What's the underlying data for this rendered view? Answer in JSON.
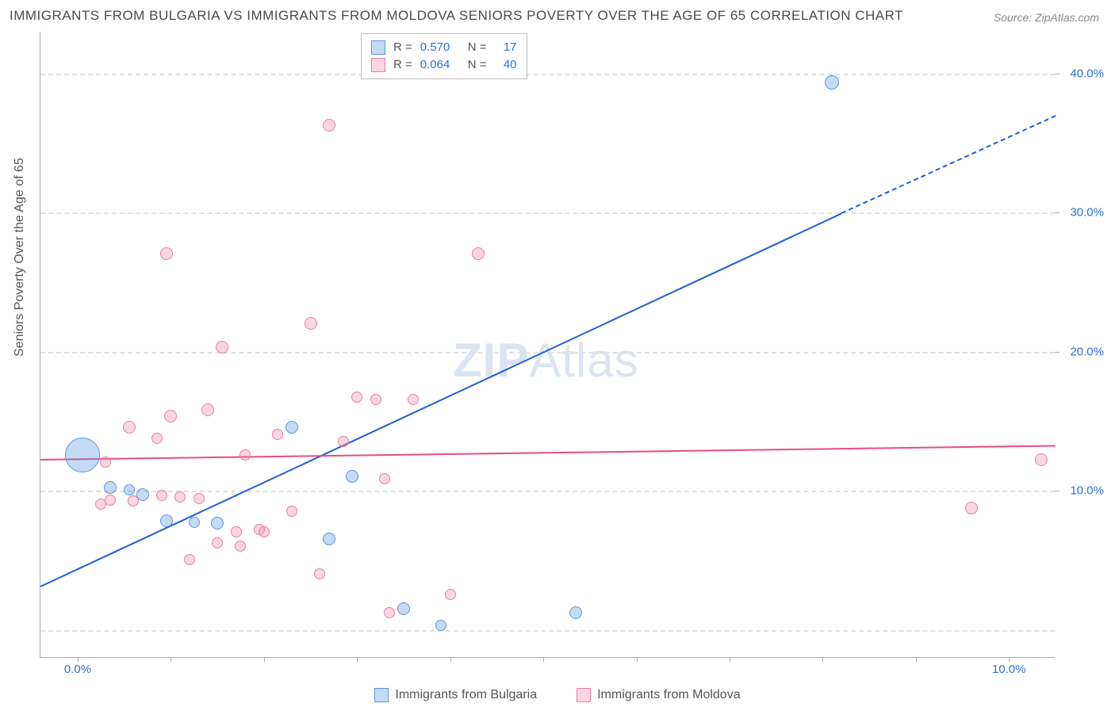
{
  "title": "IMMIGRANTS FROM BULGARIA VS IMMIGRANTS FROM MOLDOVA SENIORS POVERTY OVER THE AGE OF 65 CORRELATION CHART",
  "source": "Source: ZipAtlas.com",
  "ylabel": "Seniors Poverty Over the Age of 65",
  "watermark_zip": "ZIP",
  "watermark_atlas": "Atlas",
  "chart": {
    "type": "scatter",
    "xlim": [
      -0.4,
      10.5
    ],
    "ylim": [
      -2,
      43
    ],
    "xtick_labels": [
      "0.0%",
      "10.0%"
    ],
    "xtick_vals": [
      0.0,
      10.0
    ],
    "xtick_color": "#2a6fd6",
    "ytick_labels": [
      "10.0%",
      "20.0%",
      "30.0%",
      "40.0%"
    ],
    "ytick_vals": [
      10,
      20,
      30,
      40
    ],
    "ytick_color": "#2a6fd6",
    "grid_y_vals": [
      0,
      10,
      20,
      30,
      40
    ],
    "grid_color": "#e0e0e0",
    "background_color": "#ffffff",
    "series": [
      {
        "name": "Immigrants from Bulgaria",
        "color_fill": "rgba(90,150,225,0.35)",
        "color_stroke": "#5a96e1",
        "trend_color": "#1e5fd6",
        "trend": {
          "x1": -0.4,
          "y1": 3.2,
          "x2": 8.2,
          "y2": 30,
          "dash_x2": 10.5,
          "dash_y2": 37
        },
        "R": "0.570",
        "N": "17",
        "points": [
          {
            "x": 0.05,
            "y": 12.5,
            "r": 22
          },
          {
            "x": 0.35,
            "y": 10.2,
            "r": 8
          },
          {
            "x": 0.55,
            "y": 10.0,
            "r": 7
          },
          {
            "x": 0.7,
            "y": 9.7,
            "r": 8
          },
          {
            "x": 0.95,
            "y": 7.8,
            "r": 8
          },
          {
            "x": 1.25,
            "y": 7.7,
            "r": 7
          },
          {
            "x": 1.5,
            "y": 7.6,
            "r": 8
          },
          {
            "x": 2.3,
            "y": 14.5,
            "r": 8
          },
          {
            "x": 2.7,
            "y": 6.5,
            "r": 8
          },
          {
            "x": 2.95,
            "y": 11.0,
            "r": 8
          },
          {
            "x": 3.5,
            "y": 1.5,
            "r": 8
          },
          {
            "x": 3.9,
            "y": 0.3,
            "r": 7
          },
          {
            "x": 5.35,
            "y": 1.2,
            "r": 8
          },
          {
            "x": 8.1,
            "y": 39.3,
            "r": 9
          }
        ]
      },
      {
        "name": "Immigrants from Moldova",
        "color_fill": "rgba(240,140,165,0.35)",
        "color_stroke": "#ec7ca0",
        "trend_color": "#e94b86",
        "trend": {
          "x1": -0.4,
          "y1": 12.3,
          "x2": 10.5,
          "y2": 13.3
        },
        "R": "0.064",
        "N": "40",
        "points": [
          {
            "x": 0.25,
            "y": 9.0,
            "r": 7
          },
          {
            "x": 0.3,
            "y": 12.0,
            "r": 7
          },
          {
            "x": 0.35,
            "y": 9.3,
            "r": 7
          },
          {
            "x": 0.55,
            "y": 14.5,
            "r": 8
          },
          {
            "x": 0.6,
            "y": 9.2,
            "r": 7
          },
          {
            "x": 0.85,
            "y": 13.7,
            "r": 7
          },
          {
            "x": 0.9,
            "y": 9.6,
            "r": 7
          },
          {
            "x": 0.95,
            "y": 27.0,
            "r": 8
          },
          {
            "x": 1.0,
            "y": 15.3,
            "r": 8
          },
          {
            "x": 1.1,
            "y": 9.5,
            "r": 7
          },
          {
            "x": 1.2,
            "y": 5.0,
            "r": 7
          },
          {
            "x": 1.3,
            "y": 9.4,
            "r": 7
          },
          {
            "x": 1.4,
            "y": 15.8,
            "r": 8
          },
          {
            "x": 1.5,
            "y": 6.2,
            "r": 7
          },
          {
            "x": 1.55,
            "y": 20.3,
            "r": 8
          },
          {
            "x": 1.7,
            "y": 7.0,
            "r": 7
          },
          {
            "x": 1.75,
            "y": 6.0,
            "r": 7
          },
          {
            "x": 1.8,
            "y": 12.5,
            "r": 7
          },
          {
            "x": 1.95,
            "y": 7.2,
            "r": 7
          },
          {
            "x": 2.0,
            "y": 7.0,
            "r": 7
          },
          {
            "x": 2.15,
            "y": 14.0,
            "r": 7
          },
          {
            "x": 2.3,
            "y": 8.5,
            "r": 7
          },
          {
            "x": 2.5,
            "y": 22.0,
            "r": 8
          },
          {
            "x": 2.6,
            "y": 4.0,
            "r": 7
          },
          {
            "x": 2.7,
            "y": 36.2,
            "r": 8
          },
          {
            "x": 2.85,
            "y": 13.5,
            "r": 7
          },
          {
            "x": 3.0,
            "y": 16.7,
            "r": 7
          },
          {
            "x": 3.2,
            "y": 16.5,
            "r": 7
          },
          {
            "x": 3.3,
            "y": 10.8,
            "r": 7
          },
          {
            "x": 3.35,
            "y": 1.2,
            "r": 7
          },
          {
            "x": 3.6,
            "y": 16.5,
            "r": 7
          },
          {
            "x": 4.0,
            "y": 2.5,
            "r": 7
          },
          {
            "x": 4.3,
            "y": 27.0,
            "r": 8
          },
          {
            "x": 9.6,
            "y": 8.7,
            "r": 8
          },
          {
            "x": 10.35,
            "y": 12.2,
            "r": 8
          }
        ]
      }
    ]
  },
  "legend_top": {
    "rows": [
      {
        "swatch_fill": "rgba(90,150,225,0.35)",
        "swatch_stroke": "#5a96e1",
        "r_label": "R =",
        "r_val": "0.570",
        "n_label": "N =",
        "n_val": "17",
        "val_color": "#2a6fd6"
      },
      {
        "swatch_fill": "rgba(240,140,165,0.35)",
        "swatch_stroke": "#ec7ca0",
        "r_label": "R =",
        "r_val": "0.064",
        "n_label": "N =",
        "n_val": "40",
        "val_color": "#2a6fd6"
      }
    ]
  },
  "legend_bottom": [
    {
      "swatch_fill": "rgba(90,150,225,0.35)",
      "swatch_stroke": "#5a96e1",
      "label": "Immigrants from Bulgaria"
    },
    {
      "swatch_fill": "rgba(240,140,165,0.35)",
      "swatch_stroke": "#ec7ca0",
      "label": "Immigrants from Moldova"
    }
  ]
}
